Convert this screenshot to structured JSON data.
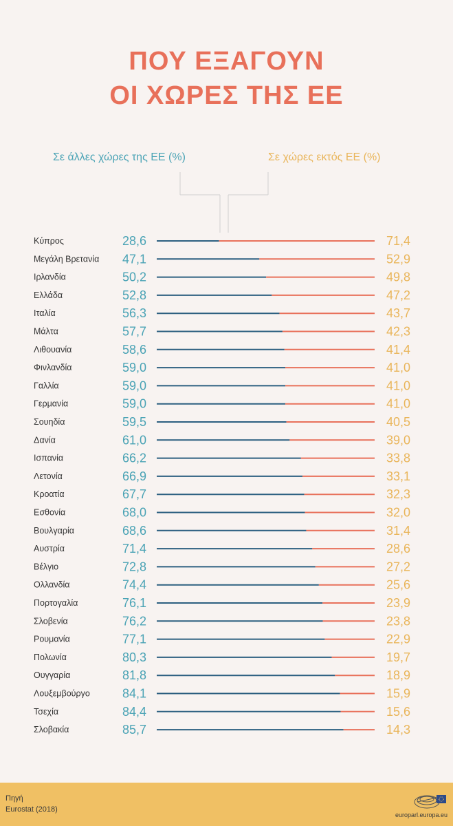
{
  "title_line1": "ΠΟΥ ΕΞΑΓΟΥΝ",
  "title_line2": "ΟΙ ΧΩΡΕΣ ΤΗΣ ΕΕ",
  "colors": {
    "title": "#e8705a",
    "intra": "#4aa3b5",
    "intra_line": "#2c5f80",
    "extra": "#e9b55a",
    "extra_line": "#e8705a",
    "footer": "#f0c064"
  },
  "footer": {
    "source_label": "Πηγή",
    "source_value": "Eurostat (2018)",
    "site": "europarl.europa.eu"
  },
  "chart_data": {
    "type": "bar",
    "stacked": true,
    "orientation": "horizontal",
    "series": [
      {
        "name": "Σε άλλες χώρες της ΕΕ (%)",
        "values": [
          28.6,
          47.1,
          50.2,
          52.8,
          56.3,
          57.7,
          58.6,
          59.0,
          59.0,
          59.0,
          59.5,
          61.0,
          66.2,
          66.9,
          67.7,
          68.0,
          68.6,
          71.4,
          72.8,
          74.4,
          76.1,
          76.2,
          77.1,
          80.3,
          81.8,
          84.1,
          84.4,
          85.7
        ]
      },
      {
        "name": "Σε χώρες εκτός ΕΕ (%)",
        "values": [
          71.4,
          52.9,
          49.8,
          47.2,
          43.7,
          42.3,
          41.4,
          41.0,
          41.0,
          41.0,
          40.5,
          39.0,
          33.8,
          33.1,
          32.3,
          32.0,
          31.4,
          28.6,
          27.2,
          25.6,
          23.9,
          23.8,
          22.9,
          19.7,
          18.9,
          15.9,
          15.6,
          14.3
        ]
      }
    ],
    "categories": [
      "Κύπρος",
      "Μεγάλη Βρετανία",
      "Ιρλανδία",
      "Ελλάδα",
      "Ιταλία",
      "Μάλτα",
      "Λιθουανία",
      "Φινλανδία",
      "Γαλλία",
      "Γερμανία",
      "Σουηδία",
      "Δανία",
      "Ισπανία",
      "Λετονία",
      "Κροατία",
      "Εσθονία",
      "Βουλγαρία",
      "Αυστρία",
      "Βέλγιο",
      "Ολλανδία",
      "Πορτογαλία",
      "Σλοβενία",
      "Ρουμανία",
      "Πολωνία",
      "Ουγγαρία",
      "Λουξεμβούργο",
      "Τσεχία",
      "Σλοβακία"
    ],
    "intra_labels": [
      "28,6",
      "47,1",
      "50,2",
      "52,8",
      "56,3",
      "57,7",
      "58,6",
      "59,0",
      "59,0",
      "59,0",
      "59,5",
      "61,0",
      "66,2",
      "66,9",
      "67,7",
      "68,0",
      "68,6",
      "71,4",
      "72,8",
      "74,4",
      "76,1",
      "76,2",
      "77,1",
      "80,3",
      "81,8",
      "84,1",
      "84,4",
      "85,7"
    ],
    "extra_labels": [
      "71,4",
      "52,9",
      "49,8",
      "47,2",
      "43,7",
      "42,3",
      "41,4",
      "41,0",
      "41,0",
      "41,0",
      "40,5",
      "39,0",
      "33,8",
      "33,1",
      "32,3",
      "32,0",
      "31,4",
      "28,6",
      "27,2",
      "25,6",
      "23,9",
      "23,8",
      "22,9",
      "19,7",
      "18,9",
      "15,9",
      "15,6",
      "14,3"
    ],
    "xlim": [
      0,
      100
    ],
    "grid": false,
    "legend": "top"
  }
}
